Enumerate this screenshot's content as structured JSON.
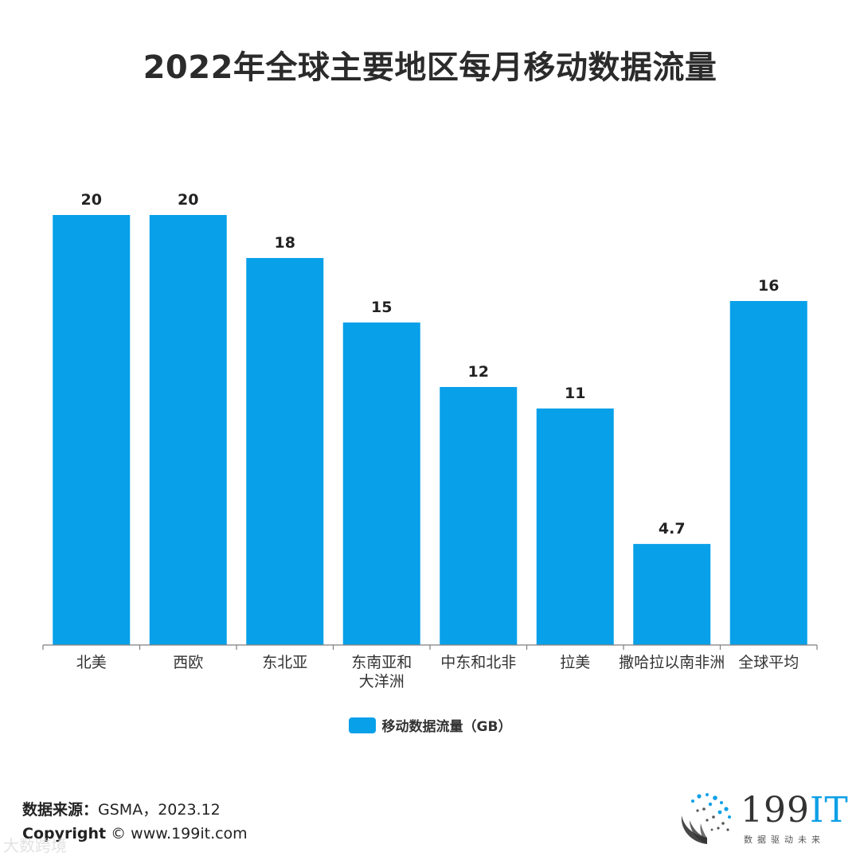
{
  "title": "2022年全球主要地区每月移动数据流量",
  "chart_data": {
    "type": "bar",
    "categories": [
      "北美",
      "西欧",
      "东北亚",
      "东南亚和\n大洋洲",
      "中东和北非",
      "拉美",
      "撒哈拉以南非洲",
      "全球平均"
    ],
    "series": [
      {
        "name": "移动数据流量（GB）",
        "values": [
          20,
          20,
          18,
          15,
          12,
          11,
          4.7,
          16
        ],
        "color": "#08a0e9"
      }
    ],
    "data_labels": [
      "20",
      "20",
      "18",
      "15",
      "12",
      "11",
      "4.7",
      "16"
    ],
    "ylim": [
      0,
      20
    ],
    "xlabel": "",
    "ylabel": "",
    "grid": false,
    "legend_position": "bottom"
  },
  "legend_label": "移动数据流量（GB）",
  "source": {
    "label": "数据来源：",
    "value": "GSMA，2023.12"
  },
  "copyright": {
    "label": "Copyright",
    "value": "© www.199it.com"
  },
  "watermark": "大数跨境",
  "logo": {
    "text_main": "199",
    "text_accent": "IT",
    "tagline": "数据驱动未来"
  },
  "colors": {
    "bar": "#08a0e9",
    "axis": "#7f7f7f",
    "text": "#222222"
  }
}
